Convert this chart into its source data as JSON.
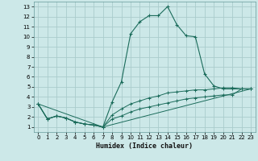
{
  "xlabel": "Humidex (Indice chaleur)",
  "background_color": "#cce8e8",
  "grid_color": "#aacccc",
  "line_color": "#1a6b5a",
  "xlim": [
    -0.5,
    23.5
  ],
  "ylim": [
    0.5,
    13.5
  ],
  "xticks": [
    0,
    1,
    2,
    3,
    4,
    5,
    6,
    7,
    8,
    9,
    10,
    11,
    12,
    13,
    14,
    15,
    16,
    17,
    18,
    19,
    20,
    21,
    22,
    23
  ],
  "yticks": [
    1,
    2,
    3,
    4,
    5,
    6,
    7,
    8,
    9,
    10,
    11,
    12,
    13
  ],
  "line1_x": [
    0,
    1,
    2,
    3,
    4,
    5,
    6,
    7,
    8,
    9,
    10,
    11,
    12,
    13,
    14,
    15,
    16,
    17,
    18,
    19,
    20,
    21,
    22,
    23
  ],
  "line1_y": [
    3.3,
    1.8,
    2.1,
    1.9,
    1.5,
    1.3,
    1.2,
    1.0,
    3.5,
    5.5,
    10.3,
    11.5,
    12.1,
    12.1,
    13.0,
    11.2,
    10.1,
    10.0,
    6.3,
    5.1,
    4.8,
    4.8,
    4.8,
    4.8
  ],
  "line2_x": [
    0,
    1,
    2,
    3,
    4,
    5,
    6,
    7,
    8,
    9,
    10,
    11,
    12,
    13,
    14,
    15,
    16,
    17,
    18,
    19,
    20,
    21,
    22,
    23
  ],
  "line2_y": [
    3.3,
    1.8,
    2.1,
    1.9,
    1.5,
    1.3,
    1.2,
    1.0,
    2.2,
    2.8,
    3.3,
    3.6,
    3.9,
    4.1,
    4.4,
    4.5,
    4.6,
    4.7,
    4.7,
    4.8,
    4.9,
    4.9,
    4.8,
    4.8
  ],
  "line3_x": [
    0,
    1,
    2,
    3,
    4,
    5,
    6,
    7,
    8,
    9,
    10,
    11,
    12,
    13,
    14,
    15,
    16,
    17,
    18,
    19,
    20,
    21,
    22,
    23
  ],
  "line3_y": [
    3.3,
    1.8,
    2.1,
    1.9,
    1.5,
    1.3,
    1.2,
    1.0,
    1.8,
    2.1,
    2.5,
    2.8,
    3.0,
    3.2,
    3.4,
    3.6,
    3.8,
    3.9,
    4.0,
    4.1,
    4.2,
    4.2,
    4.8,
    4.8
  ],
  "line4_x": [
    0,
    7,
    23
  ],
  "line4_y": [
    3.3,
    1.0,
    4.8
  ]
}
